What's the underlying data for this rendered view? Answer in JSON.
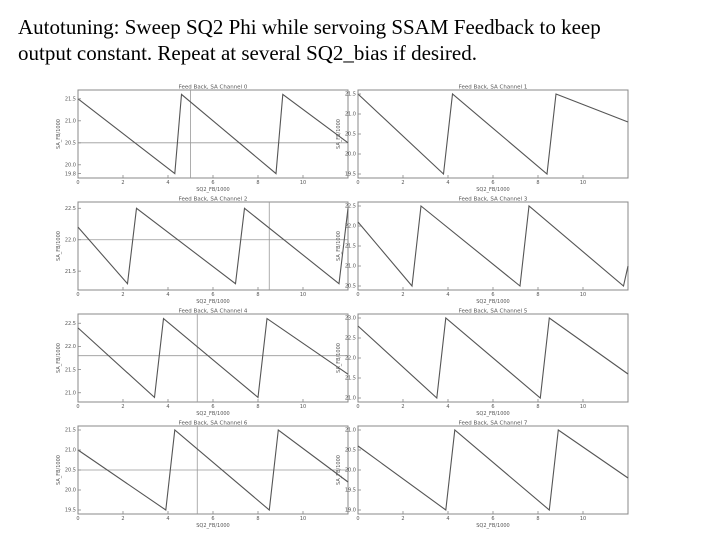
{
  "slide": {
    "title_line1": "Autotuning: Sweep SQ2 Phi while servoing SSAM Feedback to keep",
    "title_line2": "output constant.  Repeat at several SQ2_bias if desired."
  },
  "colors": {
    "trace": "#555555",
    "frame": "#888888",
    "background": "#ffffff"
  },
  "chart_data": [
    {
      "type": "line",
      "title": "Feed Back, SA Channel   0",
      "xlabel": "SQ2_FB/1000",
      "ylabel": "SA_FB/1000",
      "xlim": [
        0,
        12
      ],
      "ylim": [
        19.7,
        21.7
      ],
      "x_ticks": [
        "0",
        "2",
        "4",
        "6",
        "8",
        "10"
      ],
      "y_ticks": [
        "19.8",
        "20.0",
        "20.5",
        "21.0",
        "21.5"
      ],
      "marker_x": 5.0,
      "marker_y": 20.5,
      "series": [
        {
          "x": [
            0,
            4.3,
            4.6,
            8.8,
            9.1,
            12
          ],
          "y": [
            21.5,
            19.8,
            21.6,
            19.8,
            21.6,
            20.5
          ]
        }
      ]
    },
    {
      "type": "line",
      "title": "Feed Back, SA Channel   1",
      "xlabel": "SQ2_FB/1000",
      "ylabel": "SA_FB/1000",
      "xlim": [
        0,
        12
      ],
      "ylim": [
        19.4,
        21.6
      ],
      "x_ticks": [
        "0",
        "2",
        "4",
        "6",
        "8",
        "10"
      ],
      "y_ticks": [
        "19.5",
        "20.0",
        "20.5",
        "21.0",
        "21.5"
      ],
      "marker_x": null,
      "marker_y": null,
      "series": [
        {
          "x": [
            0,
            3.8,
            4.2,
            8.4,
            8.8,
            12
          ],
          "y": [
            21.5,
            19.5,
            21.5,
            19.5,
            21.5,
            20.8
          ]
        }
      ]
    },
    {
      "type": "line",
      "title": "Feed Back, SA Channel   2",
      "xlabel": "SQ2_FB/1000",
      "ylabel": "SA_FB/1000",
      "xlim": [
        0,
        12
      ],
      "ylim": [
        21.2,
        22.6
      ],
      "x_ticks": [
        "0",
        "2",
        "4",
        "6",
        "8",
        "10"
      ],
      "y_ticks": [
        "21.5",
        "22.0",
        "22.5"
      ],
      "marker_x": 8.5,
      "marker_y": 22.0,
      "series": [
        {
          "x": [
            0,
            2.2,
            2.6,
            7.0,
            7.4,
            11.6,
            12
          ],
          "y": [
            22.2,
            21.3,
            22.5,
            21.3,
            22.5,
            21.3,
            22.5
          ]
        }
      ]
    },
    {
      "type": "line",
      "title": "Feed Back, SA Channel   3",
      "xlabel": "SQ2_FB/1000",
      "ylabel": "SA_FB/1000",
      "xlim": [
        0,
        12
      ],
      "ylim": [
        20.4,
        22.6
      ],
      "x_ticks": [
        "0",
        "2",
        "4",
        "6",
        "8",
        "10"
      ],
      "y_ticks": [
        "20.5",
        "21.0",
        "21.5",
        "22.0",
        "22.5"
      ],
      "marker_x": null,
      "marker_y": null,
      "series": [
        {
          "x": [
            0,
            2.4,
            2.8,
            7.2,
            7.6,
            11.8,
            12
          ],
          "y": [
            22.1,
            20.5,
            22.5,
            20.5,
            22.5,
            20.5,
            21.0
          ]
        }
      ]
    },
    {
      "type": "line",
      "title": "Feed Back, SA Channel   4",
      "xlabel": "SQ2_FB/1000",
      "ylabel": "SA_FB/1000",
      "xlim": [
        0,
        12
      ],
      "ylim": [
        20.8,
        22.7
      ],
      "x_ticks": [
        "0",
        "2",
        "4",
        "6",
        "8",
        "10"
      ],
      "y_ticks": [
        "21.0",
        "21.5",
        "22.0",
        "22.5"
      ],
      "marker_x": 5.3,
      "marker_y": 21.8,
      "series": [
        {
          "x": [
            0,
            3.4,
            3.8,
            8.0,
            8.4,
            12
          ],
          "y": [
            22.4,
            20.9,
            22.6,
            20.9,
            22.6,
            21.4
          ]
        }
      ]
    },
    {
      "type": "line",
      "title": "Feed Back, SA Channel   5",
      "xlabel": "SQ2_FB/1000",
      "ylabel": "SA_FB/1000",
      "xlim": [
        0,
        12
      ],
      "ylim": [
        20.9,
        23.1
      ],
      "x_ticks": [
        "0",
        "2",
        "4",
        "6",
        "8",
        "10"
      ],
      "y_ticks": [
        "21.0",
        "21.5",
        "22.0",
        "22.5",
        "23.0"
      ],
      "marker_x": null,
      "marker_y": null,
      "series": [
        {
          "x": [
            0,
            3.5,
            3.9,
            8.1,
            8.5,
            12
          ],
          "y": [
            22.8,
            21.0,
            23.0,
            21.0,
            23.0,
            21.6
          ]
        }
      ]
    },
    {
      "type": "line",
      "title": "Feed Back, SA Channel   6",
      "xlabel": "SQ2_FB/1000",
      "ylabel": "SA_FB/1000",
      "xlim": [
        0,
        12
      ],
      "ylim": [
        19.4,
        21.6
      ],
      "x_ticks": [
        "0",
        "2",
        "4",
        "6",
        "8",
        "10"
      ],
      "y_ticks": [
        "19.5",
        "20.0",
        "20.5",
        "21.0",
        "21.5"
      ],
      "marker_x": 5.3,
      "marker_y": 20.5,
      "series": [
        {
          "x": [
            0,
            3.9,
            4.3,
            8.5,
            8.9,
            12
          ],
          "y": [
            21.0,
            19.5,
            21.5,
            19.5,
            21.5,
            20.2
          ]
        }
      ]
    },
    {
      "type": "line",
      "title": "Feed Back, SA Channel   7",
      "xlabel": "SQ2_FB/1000",
      "ylabel": "SA_FB/1000",
      "xlim": [
        0,
        12
      ],
      "ylim": [
        18.9,
        21.1
      ],
      "x_ticks": [
        "0",
        "2",
        "4",
        "6",
        "8",
        "10"
      ],
      "y_ticks": [
        "19.0",
        "19.5",
        "20.0",
        "20.5",
        "21.0"
      ],
      "marker_x": null,
      "marker_y": null,
      "series": [
        {
          "x": [
            0,
            3.9,
            4.3,
            8.5,
            8.9,
            12
          ],
          "y": [
            20.6,
            19.0,
            21.0,
            19.0,
            21.0,
            19.8
          ]
        }
      ]
    }
  ]
}
